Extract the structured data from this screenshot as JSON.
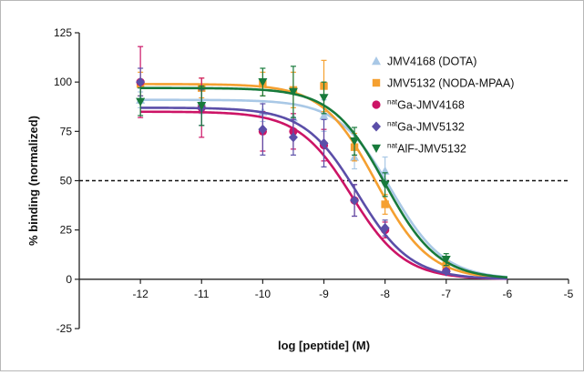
{
  "chart_data": {
    "type": "scatter",
    "xlabel": "log [peptide] (M)",
    "ylabel": "% binding (normalized)",
    "xlim": [
      -13,
      -5
    ],
    "ylim": [
      -25,
      125
    ],
    "x_ticks": [
      -12,
      -11,
      -10,
      -9,
      -8,
      -7,
      -6,
      -5
    ],
    "x_tick_labels": [
      "-12",
      "-11",
      "-10",
      "-9",
      "-8",
      "-7",
      "-6",
      "-5"
    ],
    "y_ticks": [
      -25,
      0,
      25,
      50,
      75,
      100,
      125
    ],
    "y_tick_labels": [
      "-25",
      "0",
      "25",
      "50",
      "75",
      "100",
      "125"
    ],
    "reference_line": {
      "y": 50,
      "style": "dashed"
    },
    "legend_position": "top-right",
    "series": [
      {
        "name": "JMV4168 (DOTA)",
        "legend_prefix": "",
        "legend_main": "JMV4168 (DOTA)",
        "color": "#a9c8e6",
        "marker": "triangle-up",
        "fit": {
          "top": 91,
          "bottom": 0,
          "log_ic50": -7.9,
          "hill": -1
        },
        "x": [
          -12,
          -11,
          -10,
          -9.5,
          -9,
          -8.5,
          -8,
          -7
        ],
        "y": [
          91,
          90,
          85,
          82,
          83,
          62,
          55,
          8
        ],
        "err": [
          4,
          6,
          5,
          7,
          8,
          6,
          7,
          2
        ]
      },
      {
        "name": "JMV5132 (NODA-MPAA)",
        "legend_prefix": "",
        "legend_main": "JMV5132 (NODA-MPAA)",
        "color": "#f5a030",
        "marker": "square",
        "fit": {
          "top": 99,
          "bottom": 0,
          "log_ic50": -8.15,
          "hill": -1
        },
        "x": [
          -12,
          -11,
          -10,
          -9.5,
          -9,
          -8.5,
          -8,
          -7
        ],
        "y": [
          99,
          97,
          99,
          96,
          98,
          67,
          38,
          7
        ],
        "err": [
          6,
          5,
          6,
          9,
          13,
          7,
          5,
          2
        ]
      },
      {
        "name": "natGa-JMV4168",
        "legend_prefix": "nat",
        "legend_main": "Ga-JMV4168",
        "color": "#cc1466",
        "marker": "circle",
        "fit": {
          "top": 85,
          "bottom": 0,
          "log_ic50": -8.55,
          "hill": -1
        },
        "x": [
          -12,
          -11,
          -10,
          -9.5,
          -9,
          -8.5,
          -8,
          -7
        ],
        "y": [
          100,
          87,
          75,
          75,
          68,
          40,
          25,
          4
        ],
        "err": [
          18,
          15,
          10,
          9,
          8,
          8,
          4,
          1
        ]
      },
      {
        "name": "natGa-JMV5132",
        "legend_prefix": "nat",
        "legend_main": "Ga-JMV5132",
        "color": "#5b4ea8",
        "marker": "diamond",
        "fit": {
          "top": 87,
          "bottom": 0,
          "log_ic50": -8.45,
          "hill": -1
        },
        "x": [
          -12,
          -11,
          -10,
          -9.5,
          -9,
          -8.5,
          -8,
          -7
        ],
        "y": [
          100,
          87,
          76,
          72,
          69,
          40,
          26,
          4
        ],
        "err": [
          7,
          9,
          13,
          9,
          12,
          8,
          4,
          1
        ]
      },
      {
        "name": "natAlF-JMV5132",
        "legend_prefix": "nat",
        "legend_main": "AlF-JMV5132",
        "color": "#177a3b",
        "marker": "triangle-down",
        "fit": {
          "top": 97,
          "bottom": 0,
          "log_ic50": -8.0,
          "hill": -1
        },
        "x": [
          -12,
          -11,
          -10,
          -9.5,
          -9,
          -8.5,
          -8,
          -7
        ],
        "y": [
          90,
          88,
          100,
          95,
          92,
          70,
          48,
          10
        ],
        "err": [
          7,
          10,
          7,
          13,
          8,
          7,
          6,
          3
        ]
      }
    ]
  }
}
